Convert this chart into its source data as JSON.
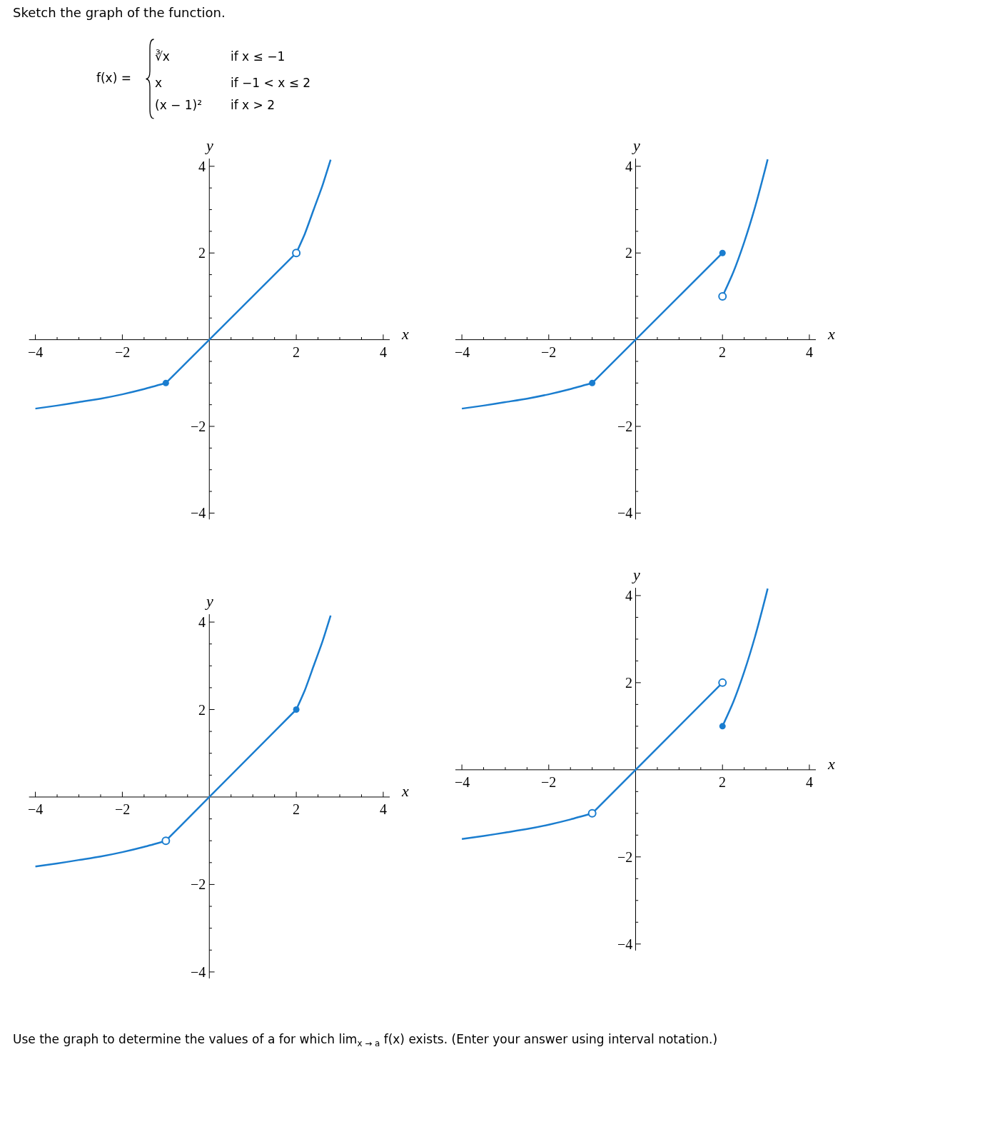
{
  "chart_data": [
    {
      "type": "line",
      "title": "Sketch the graph of the function.",
      "annotations": [
        "f(x) =",
        "∛x",
        "if x ≤ −1",
        "x",
        "if −1 < x ≤ 2",
        "(x − 1)²",
        "if x > 2"
      ],
      "xlabel": "x",
      "ylabel": "y",
      "xlim": [
        -4.15,
        4.15
      ],
      "ylim": [
        -4.15,
        4.18
      ],
      "xticks": [
        {
          "value": -4,
          "label": "−4"
        },
        {
          "value": -3.5,
          "label": null
        },
        {
          "value": -3,
          "label": null
        },
        {
          "value": -2.5,
          "label": null
        },
        {
          "value": -2,
          "label": "−2"
        },
        {
          "value": -1.5,
          "label": null
        },
        {
          "value": -1,
          "label": null
        },
        {
          "value": -0.5,
          "label": null
        },
        {
          "value": 0.5,
          "label": null
        },
        {
          "value": 1,
          "label": null
        },
        {
          "value": 1.5,
          "label": null
        },
        2,
        {
          "value": 2.5,
          "label": null
        },
        {
          "value": 3,
          "label": null
        },
        {
          "value": 3.5,
          "label": null
        },
        4
      ],
      "yticks": [
        {
          "value": -4,
          "label": "−4"
        },
        {
          "value": -3.5,
          "label": null
        },
        {
          "value": -3,
          "label": null
        },
        {
          "value": -2.5,
          "label": null
        },
        {
          "value": -2,
          "label": "−2"
        },
        {
          "value": -1.5,
          "label": null
        },
        {
          "value": -1,
          "label": null
        },
        {
          "value": -0.5,
          "label": null
        },
        {
          "value": 0.5,
          "label": null
        },
        {
          "value": 1,
          "label": null
        },
        {
          "value": 1.5,
          "label": null
        },
        2,
        {
          "value": 2.5,
          "label": null
        },
        {
          "value": 3,
          "label": null
        },
        {
          "value": 3.5,
          "label": null
        },
        4
      ],
      "series": [
        {
          "type": "line",
          "color": "#1a7dcf",
          "x": [
            -4,
            -3.5,
            -3,
            -2.5,
            -2,
            -1.5,
            -1
          ],
          "values": [
            -1.59,
            -1.52,
            -1.44,
            -1.36,
            -1.26,
            -1.14,
            -1
          ]
        },
        {
          "type": "line",
          "color": "#1a7dcf",
          "x": [
            -1,
            0,
            2
          ],
          "values": [
            -1,
            0,
            2
          ]
        },
        {
          "type": "line",
          "color": "#1a7dcf",
          "x": [
            2,
            2.2,
            2.4,
            2.6,
            2.79
          ],
          "values": [
            2,
            2.45,
            3,
            3.55,
            4.15
          ]
        },
        {
          "type": "scatter",
          "color": "#1a7dcf",
          "marker": "circle",
          "x": [
            -1
          ],
          "values": [
            -1
          ]
        },
        {
          "type": "scatter",
          "color": "#1a7dcf",
          "marker": "circle-open",
          "x": [
            2
          ],
          "values": [
            2
          ]
        }
      ]
    },
    {
      "type": "line",
      "xlabel": "x",
      "ylabel": "y",
      "xlim": [
        -4.15,
        4.15
      ],
      "ylim": [
        -4.15,
        4.18
      ],
      "xticks": [
        {
          "value": -4,
          "label": "−4"
        },
        {
          "value": -3.5,
          "label": null
        },
        {
          "value": -3,
          "label": null
        },
        {
          "value": -2.5,
          "label": null
        },
        {
          "value": -2,
          "label": "−2"
        },
        {
          "value": -1.5,
          "label": null
        },
        {
          "value": -1,
          "label": null
        },
        {
          "value": -0.5,
          "label": null
        },
        {
          "value": 0.5,
          "label": null
        },
        {
          "value": 1,
          "label": null
        },
        {
          "value": 1.5,
          "label": null
        },
        2,
        {
          "value": 2.5,
          "label": null
        },
        {
          "value": 3,
          "label": null
        },
        {
          "value": 3.5,
          "label": null
        },
        4
      ],
      "yticks": [
        {
          "value": -4,
          "label": "−4"
        },
        {
          "value": -3.5,
          "label": null
        },
        {
          "value": -3,
          "label": null
        },
        {
          "value": -2.5,
          "label": null
        },
        {
          "value": -2,
          "label": "−2"
        },
        {
          "value": -1.5,
          "label": null
        },
        {
          "value": -1,
          "label": null
        },
        {
          "value": -0.5,
          "label": null
        },
        {
          "value": 0.5,
          "label": null
        },
        {
          "value": 1,
          "label": null
        },
        {
          "value": 1.5,
          "label": null
        },
        2,
        {
          "value": 2.5,
          "label": null
        },
        {
          "value": 3,
          "label": null
        },
        {
          "value": 3.5,
          "label": null
        },
        4
      ],
      "series": [
        {
          "type": "line",
          "color": "#1a7dcf",
          "x": [
            -4,
            -3.5,
            -3,
            -2.5,
            -2,
            -1.5,
            -1
          ],
          "values": [
            -1.59,
            -1.52,
            -1.44,
            -1.36,
            -1.26,
            -1.14,
            -1
          ]
        },
        {
          "type": "line",
          "color": "#1a7dcf",
          "x": [
            -1,
            0,
            2
          ],
          "values": [
            -1,
            0,
            2
          ]
        },
        {
          "type": "line",
          "color": "#1a7dcf",
          "x": [
            2,
            2.25,
            2.5,
            2.75,
            3,
            3.04
          ],
          "values": [
            1,
            1.56,
            2.25,
            3.06,
            4,
            4.16
          ]
        },
        {
          "type": "scatter",
          "color": "#1a7dcf",
          "marker": "circle",
          "x": [
            -1,
            2
          ],
          "values": [
            -1,
            2
          ]
        },
        {
          "type": "scatter",
          "color": "#1a7dcf",
          "marker": "circle-open",
          "x": [
            2
          ],
          "values": [
            1
          ]
        }
      ]
    },
    {
      "type": "line",
      "xlabel": "x",
      "ylabel": "y",
      "xlim": [
        -4.15,
        4.15
      ],
      "ylim": [
        -4.15,
        4.18
      ],
      "xticks": [
        {
          "value": -4,
          "label": "−4"
        },
        {
          "value": -3.5,
          "label": null
        },
        {
          "value": -3,
          "label": null
        },
        {
          "value": -2.5,
          "label": null
        },
        {
          "value": -2,
          "label": "−2"
        },
        {
          "value": -1.5,
          "label": null
        },
        {
          "value": -1,
          "label": null
        },
        {
          "value": -0.5,
          "label": null
        },
        {
          "value": 0.5,
          "label": null
        },
        {
          "value": 1,
          "label": null
        },
        {
          "value": 1.5,
          "label": null
        },
        2,
        {
          "value": 2.5,
          "label": null
        },
        {
          "value": 3,
          "label": null
        },
        {
          "value": 3.5,
          "label": null
        },
        4
      ],
      "yticks": [
        {
          "value": -4,
          "label": "−4"
        },
        {
          "value": -3.5,
          "label": null
        },
        {
          "value": -3,
          "label": null
        },
        {
          "value": -2.5,
          "label": null
        },
        {
          "value": -2,
          "label": "−2"
        },
        {
          "value": -1.5,
          "label": null
        },
        {
          "value": -1,
          "label": null
        },
        {
          "value": -0.5,
          "label": null
        },
        {
          "value": 0.5,
          "label": null
        },
        {
          "value": 1,
          "label": null
        },
        {
          "value": 1.5,
          "label": null
        },
        2,
        {
          "value": 2.5,
          "label": null
        },
        {
          "value": 3,
          "label": null
        },
        {
          "value": 3.5,
          "label": null
        },
        4
      ],
      "series": [
        {
          "type": "line",
          "color": "#1a7dcf",
          "x": [
            -4,
            -3.5,
            -3,
            -2.5,
            -2,
            -1.5,
            -1
          ],
          "values": [
            -1.59,
            -1.52,
            -1.44,
            -1.36,
            -1.26,
            -1.14,
            -1
          ]
        },
        {
          "type": "line",
          "color": "#1a7dcf",
          "x": [
            -1,
            0,
            2
          ],
          "values": [
            -1,
            0,
            2
          ]
        },
        {
          "type": "line",
          "color": "#1a7dcf",
          "x": [
            2,
            2.2,
            2.4,
            2.6,
            2.79
          ],
          "values": [
            2,
            2.45,
            3,
            3.55,
            4.15
          ]
        },
        {
          "type": "scatter",
          "color": "#1a7dcf",
          "marker": "circle",
          "x": [
            2
          ],
          "values": [
            2
          ]
        },
        {
          "type": "scatter",
          "color": "#1a7dcf",
          "marker": "circle-open",
          "x": [
            -1
          ],
          "values": [
            -1
          ]
        }
      ]
    },
    {
      "type": "line",
      "xlabel": "x",
      "ylabel": "y",
      "xlim": [
        -4.15,
        4.15
      ],
      "ylim": [
        -4.15,
        4.18
      ],
      "annotations": [
        "Use the graph to determine the values of a for which lim$_{x → a}$ f(x) exists. (Enter your answer using interval notation.)"
      ],
      "xticks": [
        {
          "value": -4,
          "label": "−4"
        },
        {
          "value": -3.5,
          "label": null
        },
        {
          "value": -3,
          "label": null
        },
        {
          "value": -2.5,
          "label": null
        },
        {
          "value": -2,
          "label": "−2"
        },
        {
          "value": -1.5,
          "label": null
        },
        {
          "value": -1,
          "label": null
        },
        {
          "value": -0.5,
          "label": null
        },
        {
          "value": 0.5,
          "label": null
        },
        {
          "value": 1,
          "label": null
        },
        {
          "value": 1.5,
          "label": null
        },
        2,
        {
          "value": 2.5,
          "label": null
        },
        {
          "value": 3,
          "label": null
        },
        {
          "value": 3.5,
          "label": null
        },
        4
      ],
      "yticks": [
        {
          "value": -4,
          "label": "−4"
        },
        {
          "value": -3.5,
          "label": null
        },
        {
          "value": -3,
          "label": null
        },
        {
          "value": -2.5,
          "label": null
        },
        {
          "value": -2,
          "label": "−2"
        },
        {
          "value": -1.5,
          "label": null
        },
        {
          "value": -1,
          "label": null
        },
        {
          "value": -0.5,
          "label": null
        },
        {
          "value": 0.5,
          "label": null
        },
        {
          "value": 1,
          "label": null
        },
        {
          "value": 1.5,
          "label": null
        },
        2,
        {
          "value": 2.5,
          "label": null
        },
        {
          "value": 3,
          "label": null
        },
        {
          "value": 3.5,
          "label": null
        },
        4
      ],
      "series": [
        {
          "type": "line",
          "color": "#1a7dcf",
          "x": [
            -4,
            -3.5,
            -3,
            -2.5,
            -2,
            -1.5,
            -1
          ],
          "values": [
            -1.59,
            -1.52,
            -1.44,
            -1.36,
            -1.26,
            -1.14,
            -1
          ]
        },
        {
          "type": "line",
          "color": "#1a7dcf",
          "x": [
            -1,
            0,
            2
          ],
          "values": [
            -1,
            0,
            2
          ]
        },
        {
          "type": "line",
          "color": "#1a7dcf",
          "x": [
            2,
            2.25,
            2.5,
            2.75,
            3,
            3.04
          ],
          "values": [
            1,
            1.56,
            2.25,
            3.06,
            4,
            4.16
          ]
        },
        {
          "type": "scatter",
          "color": "#1a7dcf",
          "marker": "circle",
          "x": [
            2
          ],
          "values": [
            1
          ]
        },
        {
          "type": "scatter",
          "color": "#1a7dcf",
          "marker": "circle-open",
          "x": [
            -1,
            2
          ],
          "values": [
            -1,
            2
          ]
        }
      ]
    }
  ]
}
